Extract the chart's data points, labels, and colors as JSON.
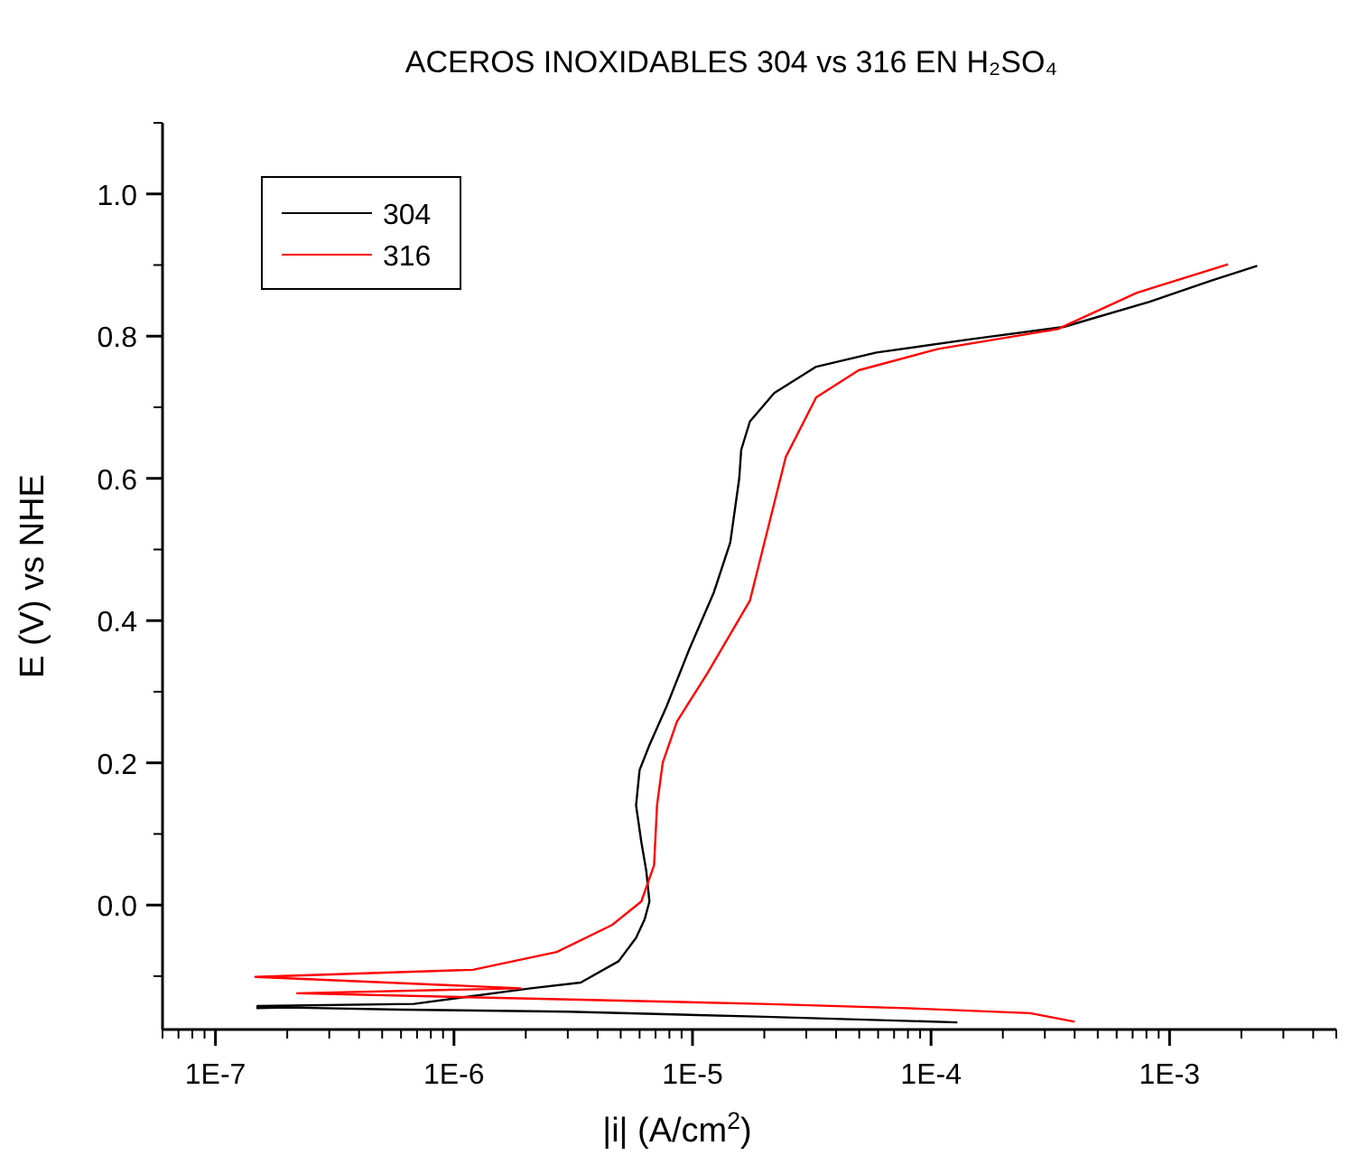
{
  "chart_data": {
    "type": "line",
    "title": "ACEROS INOXIDABLES 304 vs 316 EN H₂SO₄",
    "xlabel": "|i| (A/cm$^{2}$)",
    "ylabel": "E (V) vs NHE",
    "log": "x",
    "grid": false,
    "legend": "top left",
    "marker": "none",
    "line_style": "solid",
    "xlim": [
      6e-08,
      0.005
    ],
    "ylim": [
      -0.175,
      1.1
    ],
    "xticks": [
      {
        "value": 1e-07,
        "label": "1E-7"
      },
      {
        "value": 1e-06,
        "label": "1E-6"
      },
      {
        "value": 1e-05,
        "label": "1E-5"
      },
      {
        "value": 0.0001,
        "label": "1E-4"
      },
      {
        "value": 0.001,
        "label": "1E-3"
      }
    ],
    "yticks": [
      {
        "value": 0,
        "label": "0.0"
      },
      {
        "value": 0.2,
        "label": "0.2"
      },
      {
        "value": 0.4,
        "label": "0.4"
      },
      {
        "value": 0.6,
        "label": "0.6"
      },
      {
        "value": 0.8,
        "label": "0.8"
      },
      {
        "value": 1,
        "label": "1.0"
      }
    ],
    "series": [
      {
        "name": "304",
        "color": "#000000",
        "x": [
          0.000129,
          2e-05,
          3e-06,
          6e-07,
          2e-07,
          1.5e-07,
          1.5e-07,
          6.8e-07,
          2.1e-06,
          3.4e-06,
          4.9e-06,
          5.8e-06,
          6.3e-06,
          6.6e-06,
          6.4e-06,
          6.1e-06,
          5.8e-06,
          6e-06,
          6.6e-06,
          7.8e-06,
          9.7e-06,
          1.23e-05,
          1.44e-05,
          1.57e-05,
          1.6e-05,
          1.74e-05,
          2.2e-05,
          3.3e-05,
          5.9e-05,
          0.000142,
          0.00036,
          0.00082,
          0.00149,
          0.00233
        ],
        "values": [
          -0.165,
          -0.157,
          -0.15,
          -0.147,
          -0.144,
          -0.145,
          -0.142,
          -0.139,
          -0.117,
          -0.109,
          -0.079,
          -0.046,
          -0.02,
          0.005,
          0.048,
          0.089,
          0.14,
          0.19,
          0.225,
          0.28,
          0.36,
          0.44,
          0.51,
          0.6,
          0.64,
          0.68,
          0.72,
          0.757,
          0.777,
          0.795,
          0.813,
          0.848,
          0.878,
          0.899
        ]
      },
      {
        "name": "316",
        "color": "#ff0000",
        "x": [
          0.0004,
          0.00026,
          7.9e-05,
          1.95e-05,
          2.2e-07,
          1.9e-06,
          1.47e-07,
          1.2e-06,
          2.7e-06,
          4.6e-06,
          6.1e-06,
          6.9e-06,
          7.1e-06,
          7.5e-06,
          8.6e-06,
          1.16e-05,
          1.74e-05,
          2.46e-05,
          3.3e-05,
          4.97e-05,
          0.000107,
          0.00034,
          0.00073,
          0.00176
        ],
        "values": [
          -0.164,
          -0.152,
          -0.145,
          -0.139,
          -0.124,
          -0.117,
          -0.101,
          -0.091,
          -0.066,
          -0.028,
          0.005,
          0.056,
          0.14,
          0.2,
          0.258,
          0.327,
          0.428,
          0.63,
          0.714,
          0.752,
          0.782,
          0.81,
          0.861,
          0.901
        ]
      }
    ]
  }
}
